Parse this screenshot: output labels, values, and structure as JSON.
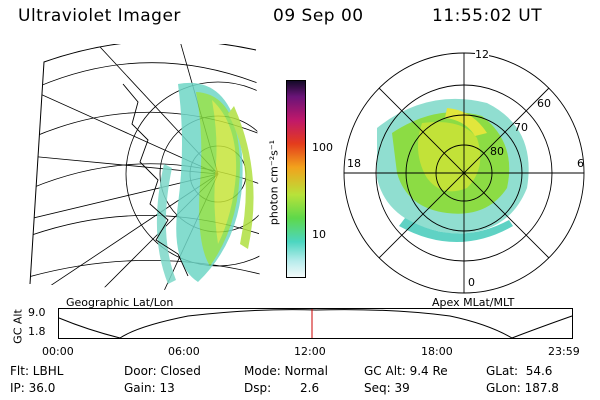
{
  "header": {
    "instrument": "Ultraviolet Imager",
    "date": "09 Sep 00",
    "time": "11:55:02 UT"
  },
  "geo_panel": {
    "label": "Geographic Lat/Lon"
  },
  "apex_panel": {
    "label": "Apex MLat/MLT",
    "mlt_labels": {
      "top": "12",
      "left": "18",
      "right": "6",
      "bottom": "0"
    },
    "lat_labels": [
      "60",
      "70",
      "80"
    ]
  },
  "colorbar": {
    "label": "photon cm⁻²s⁻¹",
    "ticks": [
      "100",
      "10"
    ],
    "scale": "log"
  },
  "timeline": {
    "ylabel": "GC Alt",
    "y_ticks": [
      "9.0",
      "1.8"
    ],
    "x_ticks": [
      "00:00",
      "06:00",
      "12:00",
      "18:00",
      "23:59"
    ],
    "marker_time": "11:55"
  },
  "footer": {
    "flt": "Flt: LBHL",
    "ip": "IP: 36.0",
    "door": "Door: Closed",
    "gain": "Gain: 13",
    "mode": "Mode: Normal",
    "dsp_label": "Dsp:",
    "dsp_value": "2.6",
    "gcalt": "GC Alt: 9.4 Re",
    "seq": "Seq: 39",
    "glat": "GLat:  54.6",
    "glon": "GLon: 187.8"
  },
  "colors": {
    "background": "#ffffff",
    "marker": "#cc0000",
    "aurora_low": "#66d8c0",
    "aurora_mid": "#7fdc3c",
    "aurora_high": "#c8e63a"
  }
}
